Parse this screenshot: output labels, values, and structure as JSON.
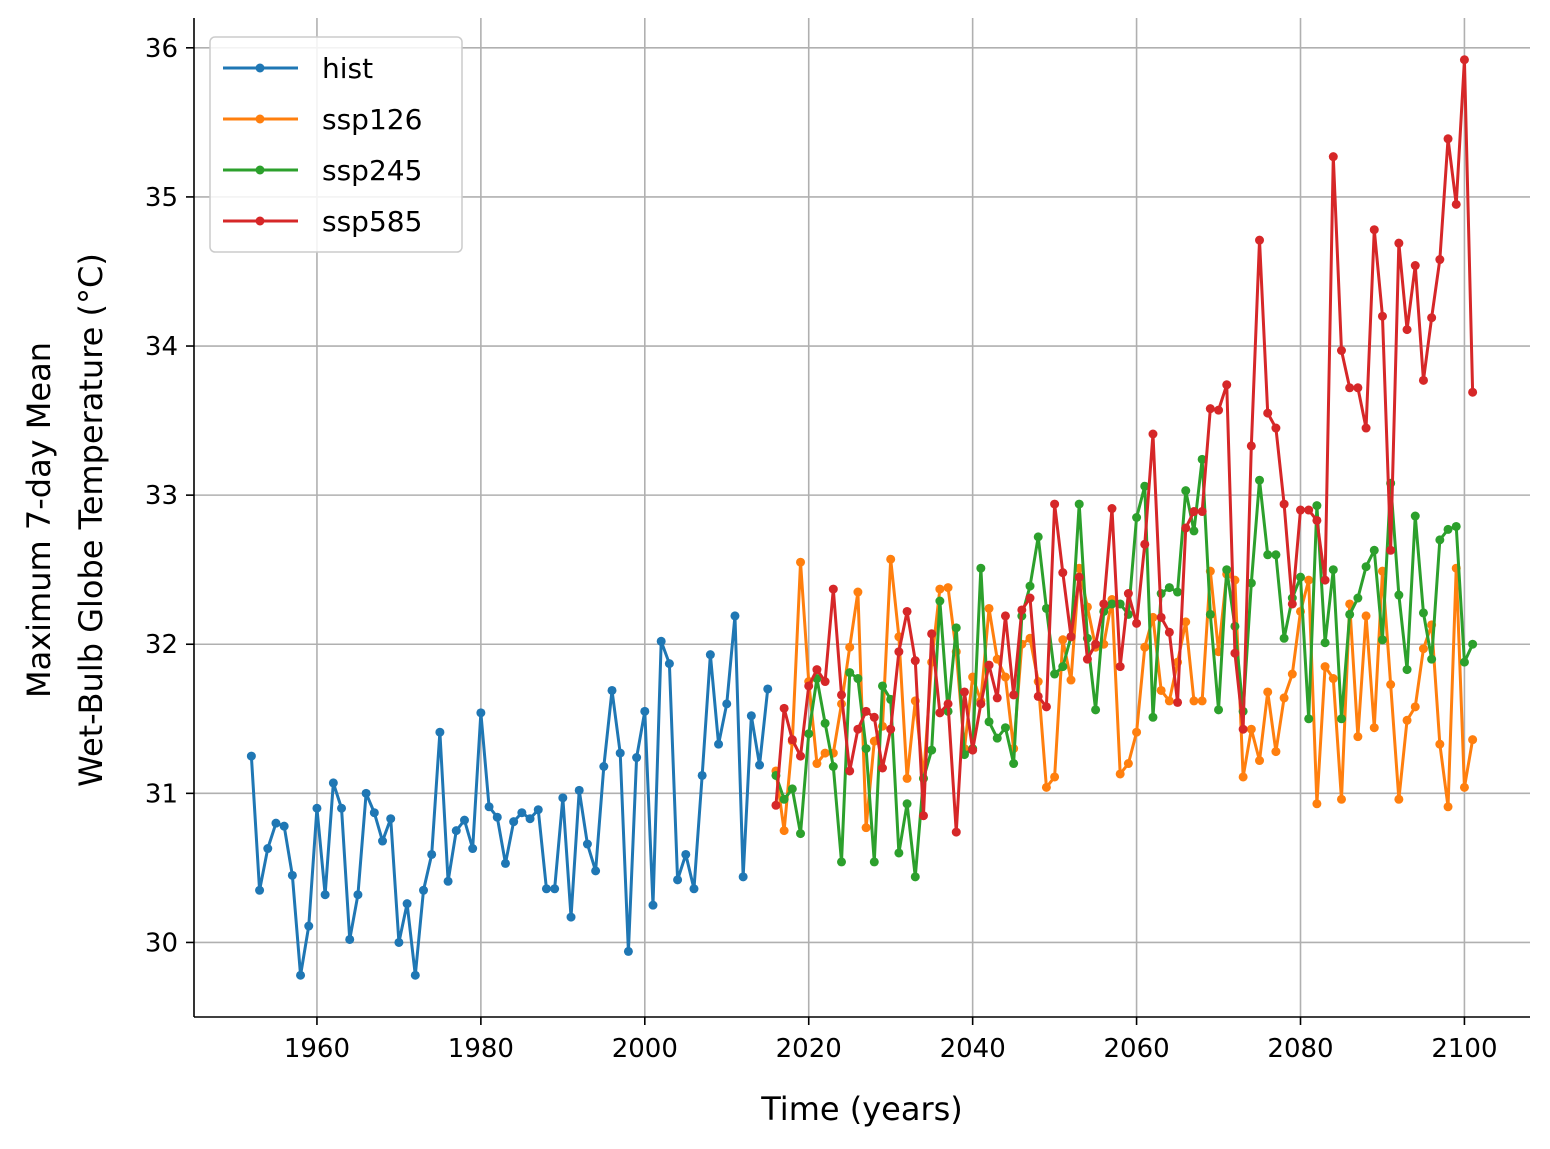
{
  "chart_data": {
    "type": "line",
    "title": "",
    "xlabel": "Time (years)",
    "ylabel_lines": [
      "Maximum 7-day Mean",
      "Wet-Bulb Globe Temperature (°C)"
    ],
    "xlim": [
      1945,
      2108
    ],
    "ylim": [
      29.5,
      36.2
    ],
    "xticks": [
      1960,
      1980,
      2000,
      2020,
      2040,
      2060,
      2080,
      2100
    ],
    "yticks": [
      30,
      31,
      32,
      33,
      34,
      35,
      36
    ],
    "grid": true,
    "legend_position": "top-left",
    "series": [
      {
        "name": "hist",
        "color": "#1f77b4",
        "x_start": 1952,
        "values": [
          31.25,
          30.35,
          30.63,
          30.8,
          30.78,
          30.45,
          29.78,
          30.11,
          30.9,
          30.32,
          31.07,
          30.9,
          30.02,
          30.32,
          31.0,
          30.87,
          30.68,
          30.83,
          30.0,
          30.26,
          29.78,
          30.35,
          30.59,
          31.41,
          30.41,
          30.75,
          30.82,
          30.63,
          31.54,
          30.91,
          30.84,
          30.53,
          30.81,
          30.87,
          30.83,
          30.89,
          30.36,
          30.36,
          30.97,
          30.17,
          31.02,
          30.66,
          30.48,
          31.18,
          31.69,
          31.27,
          29.94,
          31.24,
          31.55,
          30.25,
          32.02,
          31.87,
          30.42,
          30.59,
          30.36,
          31.12,
          31.93,
          31.33,
          31.6,
          32.19,
          30.44,
          31.52,
          31.19,
          31.7
        ]
      },
      {
        "name": "ssp126",
        "color": "#ff7f0e",
        "x_start": 2016,
        "values": [
          31.15,
          30.75,
          31.35,
          32.55,
          31.75,
          31.2,
          31.27,
          31.27,
          31.6,
          31.98,
          32.35,
          30.77,
          31.35,
          31.45,
          32.57,
          32.05,
          31.1,
          31.62,
          31.1,
          31.88,
          32.37,
          32.38,
          31.95,
          31.3,
          31.78,
          31.62,
          32.24,
          31.9,
          31.78,
          31.3,
          32.0,
          32.04,
          31.75,
          31.04,
          31.11,
          32.03,
          31.76,
          32.51,
          32.25,
          31.98,
          32.0,
          32.3,
          31.13,
          31.2,
          31.41,
          31.98,
          32.18,
          31.69,
          31.62,
          31.88,
          32.15,
          31.62,
          31.62,
          32.49,
          31.95,
          32.47,
          32.43,
          31.11,
          31.43,
          31.22,
          31.68,
          31.28,
          31.64,
          31.8,
          32.22,
          32.43,
          30.93,
          31.85,
          31.77,
          30.96,
          32.27,
          31.38,
          32.19,
          31.44,
          32.49,
          31.73,
          30.96,
          31.49,
          31.58,
          31.97,
          32.13,
          31.33,
          30.91,
          32.51,
          31.04,
          31.36
        ]
      },
      {
        "name": "ssp245",
        "color": "#2ca02c",
        "x_start": 2016,
        "values": [
          31.12,
          30.96,
          31.03,
          30.73,
          31.4,
          31.77,
          31.47,
          31.18,
          30.54,
          31.81,
          31.77,
          31.3,
          30.54,
          31.72,
          31.63,
          30.6,
          30.93,
          30.44,
          31.1,
          31.29,
          32.29,
          31.55,
          32.11,
          31.26,
          31.3,
          32.51,
          31.48,
          31.37,
          31.44,
          31.2,
          32.19,
          32.39,
          32.72,
          32.24,
          31.8,
          31.85,
          32.05,
          32.94,
          32.04,
          31.56,
          32.22,
          32.27,
          32.27,
          32.2,
          32.85,
          33.06,
          31.51,
          32.34,
          32.38,
          32.35,
          33.03,
          32.76,
          33.24,
          32.2,
          31.56,
          32.5,
          32.12,
          31.55,
          32.41,
          33.1,
          32.6,
          32.6,
          32.04,
          32.31,
          32.45,
          31.5,
          32.93,
          32.01,
          32.5,
          31.5,
          32.2,
          32.31,
          32.52,
          32.63,
          32.03,
          33.08,
          32.33,
          31.83,
          32.86,
          32.21,
          31.9,
          32.7,
          32.77,
          32.79,
          31.88,
          32.0
        ]
      },
      {
        "name": "ssp585",
        "color": "#d62728",
        "x_start": 2016,
        "values": [
          30.92,
          31.57,
          31.36,
          31.25,
          31.72,
          31.83,
          31.75,
          32.37,
          31.66,
          31.15,
          31.43,
          31.55,
          31.51,
          31.17,
          31.43,
          31.95,
          32.22,
          31.89,
          30.85,
          32.07,
          31.54,
          31.6,
          30.74,
          31.68,
          31.29,
          31.6,
          31.86,
          31.64,
          32.19,
          31.66,
          32.23,
          32.31,
          31.65,
          31.58,
          32.94,
          32.48,
          32.05,
          32.45,
          31.9,
          32.0,
          32.27,
          32.91,
          31.85,
          32.34,
          32.14,
          32.67,
          33.41,
          32.18,
          32.08,
          31.61,
          32.78,
          32.89,
          32.89,
          33.58,
          33.57,
          33.74,
          31.94,
          31.43,
          33.33,
          34.71,
          33.55,
          33.45,
          32.94,
          32.27,
          32.9,
          32.9,
          32.83,
          32.43,
          35.27,
          33.97,
          33.72,
          33.72,
          33.45,
          34.78,
          34.2,
          32.63,
          34.69,
          34.11,
          34.54,
          33.77,
          34.19,
          34.58,
          35.39,
          34.95,
          35.92,
          33.69
        ]
      }
    ]
  }
}
